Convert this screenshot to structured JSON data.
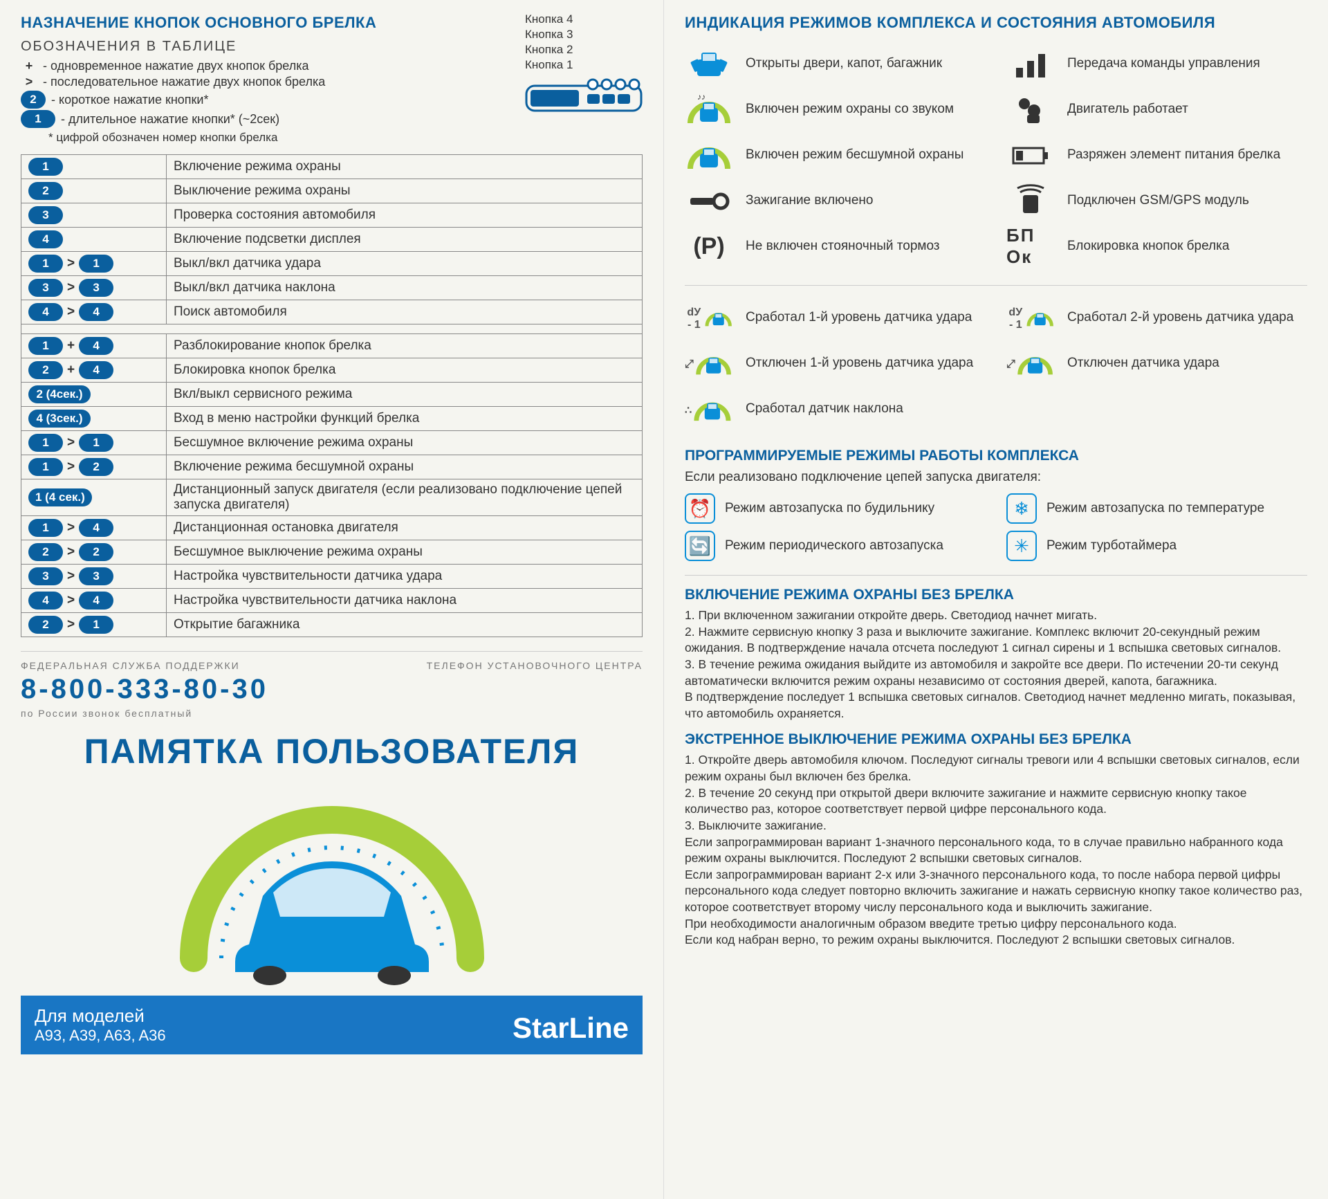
{
  "colors": {
    "accent": "#0a5f9e",
    "pill_bg": "#0a5f9e",
    "green": "#a6ce39",
    "link": "#1976c4"
  },
  "left": {
    "title": "НАЗНАЧЕНИЕ КНОПОК ОСНОВНОГО БРЕЛКА",
    "subtitle": "ОБОЗНАЧЕНИЯ В ТАБЛИЦЕ",
    "legend": [
      {
        "sym": "+",
        "text": "- одновременное нажатие двух кнопок брелка"
      },
      {
        "sym": ">",
        "text": "- последовательное нажатие двух кнопок брелка"
      },
      {
        "sym": "pill2",
        "text": "- короткое нажатие кнопки*"
      },
      {
        "sym": "pill1",
        "text": "- длительное нажатие кнопки* (~2сек)"
      }
    ],
    "footnote": "* цифрой обозначен номер кнопки брелка",
    "diagram_labels": [
      "Кнопка 4",
      "Кнопка 3",
      "Кнопка 2",
      "Кнопка 1"
    ],
    "table_block1": [
      {
        "btn": [
          {
            "t": "1"
          }
        ],
        "desc": "Включение режима охраны"
      },
      {
        "btn": [
          {
            "t": "2"
          }
        ],
        "desc": "Выключение режима охраны"
      },
      {
        "btn": [
          {
            "t": "3"
          }
        ],
        "desc": "Проверка состояния автомобиля"
      },
      {
        "btn": [
          {
            "t": "4"
          }
        ],
        "desc": "Включение подсветки дисплея"
      },
      {
        "btn": [
          {
            "t": "1"
          },
          {
            "sep": ">"
          },
          {
            "t": "1"
          }
        ],
        "desc": "Выкл/вкл датчика удара"
      },
      {
        "btn": [
          {
            "t": "3"
          },
          {
            "sep": ">"
          },
          {
            "t": "3"
          }
        ],
        "desc": "Выкл/вкл датчика наклона"
      },
      {
        "btn": [
          {
            "t": "4"
          },
          {
            "sep": ">"
          },
          {
            "t": "4"
          }
        ],
        "desc": "Поиск автомобиля"
      }
    ],
    "table_block2": [
      {
        "btn": [
          {
            "t": "1"
          },
          {
            "sep": "+"
          },
          {
            "t": "4"
          }
        ],
        "desc": "Разблокирование кнопок брелка"
      },
      {
        "btn": [
          {
            "t": "2"
          },
          {
            "sep": "+"
          },
          {
            "t": "4"
          }
        ],
        "desc": "Блокировка кнопок брелка"
      },
      {
        "btn": [
          {
            "t": "2 (4сек.)",
            "long": true
          }
        ],
        "desc": "Вкл/выкл сервисного режима"
      },
      {
        "btn": [
          {
            "t": "4 (3сек.)",
            "long": true
          }
        ],
        "desc": "Вход в меню настройки функций брелка"
      },
      {
        "btn": [
          {
            "t": "1"
          },
          {
            "sep": ">"
          },
          {
            "t": "1"
          }
        ],
        "desc": "Бесшумное включение режима охраны"
      },
      {
        "btn": [
          {
            "t": "1"
          },
          {
            "sep": ">"
          },
          {
            "t": "2"
          }
        ],
        "desc": "Включение режима бесшумной охраны"
      },
      {
        "btn": [
          {
            "t": "1 (4 сек.)",
            "long": true
          }
        ],
        "desc": "Дистанционный запуск двигателя (если реализовано подключение цепей запуска двигателя)"
      },
      {
        "btn": [
          {
            "t": "1"
          },
          {
            "sep": ">"
          },
          {
            "t": "4"
          }
        ],
        "desc": "Дистанционная остановка двигателя"
      },
      {
        "btn": [
          {
            "t": "2"
          },
          {
            "sep": ">"
          },
          {
            "t": "2"
          }
        ],
        "desc": "Бесшумное выключение режима охраны"
      },
      {
        "btn": [
          {
            "t": "3"
          },
          {
            "sep": ">"
          },
          {
            "t": "3"
          }
        ],
        "desc": "Настройка чувствительности датчика удара"
      },
      {
        "btn": [
          {
            "t": "4"
          },
          {
            "sep": ">"
          },
          {
            "t": "4"
          }
        ],
        "desc": "Настройка чувствительности датчика наклона"
      },
      {
        "btn": [
          {
            "t": "2"
          },
          {
            "sep": ">"
          },
          {
            "t": "1"
          }
        ],
        "desc": "Открытие  багажника"
      }
    ],
    "support": {
      "label": "ФЕДЕРАЛЬНАЯ СЛУЖБА ПОДДЕРЖКИ",
      "phone": "8-800-333-80-30",
      "sub": "по России звонок бесплатный",
      "right": "ТЕЛЕФОН УСТАНОВОЧНОГО ЦЕНТРА"
    },
    "cover": {
      "title": "ПАМЯТКА ПОЛЬЗОВАТЕЛЯ",
      "models_label": "Для моделей",
      "models_list": "A93, A39, A63, A36",
      "brand": "StarLine"
    }
  },
  "right": {
    "title": "ИНДИКАЦИЯ РЕЖИМОВ КОМПЛЕКСА И СОСТОЯНИЯ АВТОМОБИЛЯ",
    "status_block1": [
      {
        "icon": "car-open",
        "text": "Открыты двери, капот, багажник"
      },
      {
        "icon": "bars",
        "text": "Передача команды управления"
      },
      {
        "icon": "arc-sound",
        "text": "Включен режим охраны со звуком"
      },
      {
        "icon": "engine",
        "text": "Двигатель работает"
      },
      {
        "icon": "arc-silent",
        "text": "Включен режим бесшумной охраны"
      },
      {
        "icon": "battery",
        "text": "Разряжен элемент питания брелка"
      },
      {
        "icon": "key",
        "text": "Зажигание включено"
      },
      {
        "icon": "gsm",
        "text": "Подключен GSM/GPS модуль"
      },
      {
        "icon": "parking",
        "text": "Не включен стояночный тормоз"
      },
      {
        "icon": "lock",
        "text": "Блокировка кнопок брелка"
      }
    ],
    "status_block2": [
      {
        "icon": "arc-sensor",
        "over": "dУ - 1",
        "text": "Сработал 1-й уровень датчика удара"
      },
      {
        "icon": "arc-sensor",
        "over": "dУ - 1",
        "text": "Сработал 2-й уровень датчика удара"
      },
      {
        "icon": "arc-sensor",
        "over": "⤢",
        "text": "Отключен 1-й уровень датчика удара"
      },
      {
        "icon": "arc-sensor",
        "over": "⤢",
        "text": "Отключен датчика удара"
      },
      {
        "icon": "arc-sensor",
        "over": "∴",
        "text": "Сработал датчик наклона"
      }
    ],
    "prog_title": "ПРОГРАММИРУЕМЫЕ РЕЖИМЫ РАБОТЫ КОМПЛЕКСА",
    "prog_sub": "Если реализовано подключение цепей запуска двигателя:",
    "prog_items": [
      {
        "icon": "⏰",
        "text": "Режим автозапуска по будильнику"
      },
      {
        "icon": "❄",
        "text": "Режим автозапуска по температуре"
      },
      {
        "icon": "🔄",
        "text": "Режим периодического автозапуска"
      },
      {
        "icon": "✳",
        "text": "Режим турботаймера"
      }
    ],
    "instr1_title": "ВКЛЮЧЕНИЕ РЕЖИМА ОХРАНЫ БЕЗ БРЕЛКА",
    "instr1_body": "1. При включенном зажигании откройте дверь. Светодиод начнет мигать.\n2. Нажмите сервисную кнопку 3 раза и выключите зажигание. Комплекс включит 20-секундный режим ожидания. В подтверждение начала отсчета последуют 1 сигнал сирены и 1 вспышка световых сигналов.\n3. В течение режима ожидания выйдите из автомобиля и закройте все двери. По истечении 20-ти секунд автоматически включится режим охраны независимо от состояния дверей, капота, багажника.\nВ подтверждение последует 1 вспышка световых сигналов. Светодиод начнет медленно мигать, показывая, что автомобиль охраняется.",
    "instr2_title": "ЭКСТРЕННОЕ ВЫКЛЮЧЕНИЕ РЕЖИМА ОХРАНЫ БЕЗ БРЕЛКА",
    "instr2_body": "1. Откройте дверь автомобиля ключом. Последуют сигналы тревоги или 4 вспышки световых сигналов, если режим охраны был включен без брелка.\n2. В течение 20 секунд при открытой двери включите зажигание и нажмите сервисную кнопку такое количество раз, которое соответствует первой цифре персонального кода.\n3. Выключите зажигание.\nЕсли запрограммирован вариант 1-значного персонального кода, то в случае правильно набранного кода режим охраны выключится. Последуют 2 вспышки световых сигналов.\nЕсли запрограммирован вариант 2-х или 3-значного персонального кода, то после набора первой цифры персонального кода следует повторно включить зажигание и нажать сервисную кнопку такое количество раз, которое соответствует второму числу персонального кода и выключить зажигание.\nПри необходимости аналогичным образом введите третью цифру персонального кода.\nЕсли код набран верно, то режим охраны выключится. Последуют 2 вспышки световых сигналов."
  }
}
